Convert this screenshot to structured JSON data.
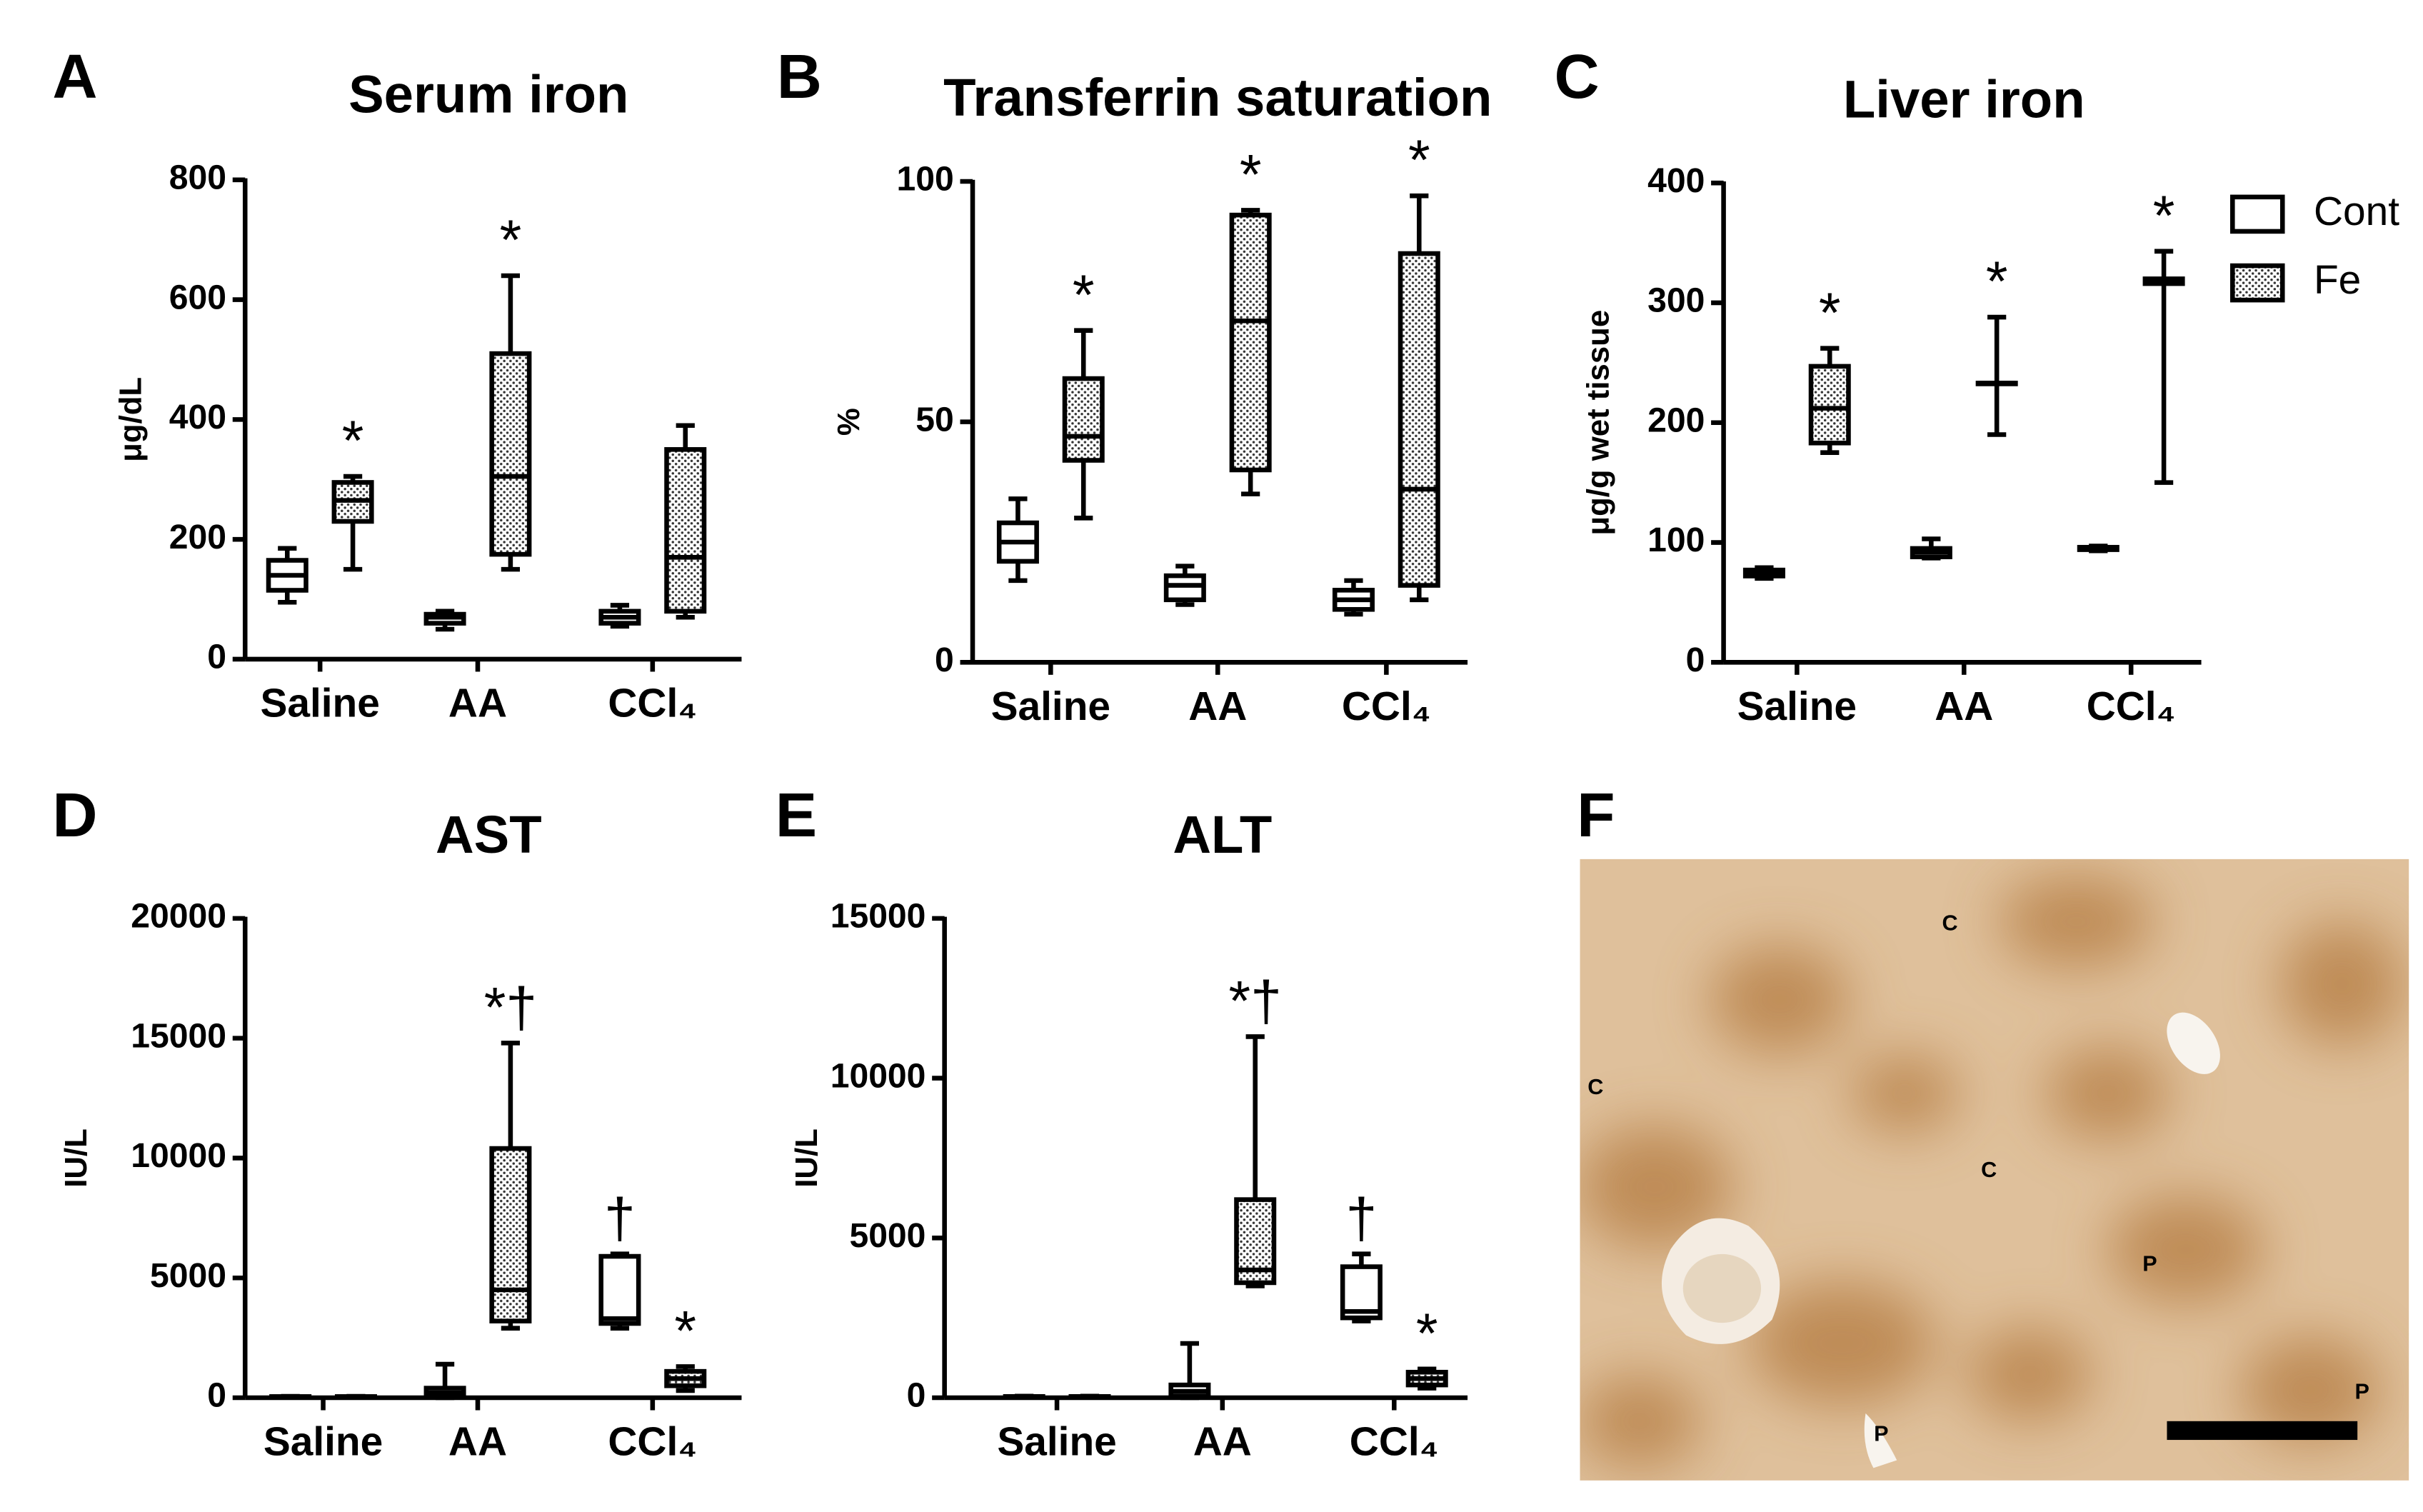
{
  "chart_data": [
    {
      "type": "box",
      "panel": "A",
      "title": "Serum iron",
      "y_label": "μg/dL",
      "ylim": [
        0,
        800
      ],
      "yticks": [
        0,
        200,
        400,
        600,
        800
      ],
      "categories": [
        "Saline",
        "AA",
        "CCl₄"
      ],
      "series": [
        {
          "name": "Cont",
          "color": "#000000",
          "fill": "white",
          "values": [
            {
              "min": 95,
              "q1": 115,
              "median": 140,
              "q3": 165,
              "max": 185
            },
            {
              "min": 50,
              "q1": 60,
              "median": 70,
              "q3": 75,
              "max": 80
            },
            {
              "min": 55,
              "q1": 60,
              "median": 70,
              "q3": 80,
              "max": 90
            }
          ],
          "annotations": [
            null,
            null,
            null
          ]
        },
        {
          "name": "Fe",
          "color": "#000000",
          "fill": "dots",
          "values": [
            {
              "min": 150,
              "q1": 230,
              "median": 265,
              "q3": 295,
              "max": 305
            },
            {
              "min": 150,
              "q1": 175,
              "median": 305,
              "q3": 510,
              "max": 640
            },
            {
              "min": 70,
              "q1": 80,
              "median": 170,
              "q3": 350,
              "max": 390
            }
          ],
          "annotations": [
            "*",
            "*",
            null
          ]
        }
      ]
    },
    {
      "type": "box",
      "panel": "B",
      "title": "Transferrin saturation",
      "y_label": "%",
      "ylim": [
        0,
        100
      ],
      "yticks": [
        0,
        50,
        100
      ],
      "categories": [
        "Saline",
        "AA",
        "CCl₄"
      ],
      "series": [
        {
          "name": "Cont",
          "color": "#000000",
          "fill": "white",
          "values": [
            {
              "min": 17,
              "q1": 21,
              "median": 25,
              "q3": 29,
              "max": 34
            },
            {
              "min": 12,
              "q1": 13,
              "median": 16,
              "q3": 18,
              "max": 20
            },
            {
              "min": 10,
              "q1": 11,
              "median": 13,
              "q3": 15,
              "max": 17
            }
          ],
          "annotations": [
            null,
            null,
            null
          ]
        },
        {
          "name": "Fe",
          "color": "#000000",
          "fill": "dots",
          "values": [
            {
              "min": 30,
              "q1": 42,
              "median": 47,
              "q3": 59,
              "max": 69
            },
            {
              "min": 35,
              "q1": 40,
              "median": 71,
              "q3": 93,
              "max": 94
            },
            {
              "min": 13,
              "q1": 16,
              "median": 36,
              "q3": 85,
              "max": 97
            }
          ],
          "annotations": [
            "*",
            "*",
            "*"
          ]
        }
      ]
    },
    {
      "type": "box",
      "panel": "C",
      "title": "Liver iron",
      "y_label": "μg/g wet tissue",
      "ylim": [
        0,
        400
      ],
      "yticks": [
        0,
        100,
        200,
        300,
        400
      ],
      "categories": [
        "Saline",
        "AA",
        "CCl₄"
      ],
      "legend": "right",
      "series": [
        {
          "name": "Cont",
          "color": "#000000",
          "fill": "white",
          "values": [
            {
              "min": 70,
              "q1": 72,
              "median": 75,
              "q3": 77,
              "max": 79
            },
            {
              "min": 87,
              "q1": 88,
              "median": 92,
              "q3": 95,
              "max": 103
            },
            {
              "min": 93,
              "q1": 94,
              "median": 95,
              "q3": 96,
              "max": 97
            }
          ],
          "annotations": [
            null,
            null,
            null
          ]
        },
        {
          "name": "Fe",
          "color": "#000000",
          "fill": "dots",
          "values": [
            {
              "min": 175,
              "q1": 183,
              "median": 212,
              "q3": 247,
              "max": 262
            },
            {
              "min": 190,
              "q1": 233,
              "median": 233,
              "q3": 233,
              "max": 288
            },
            {
              "min": 150,
              "q1": 316,
              "median": 318,
              "q3": 320,
              "max": 343
            }
          ],
          "annotations": [
            "*",
            "*",
            "*"
          ]
        }
      ]
    },
    {
      "type": "box",
      "panel": "D",
      "title": "AST",
      "y_label": "IU/L",
      "ylim": [
        0,
        20000
      ],
      "yticks": [
        0,
        5000,
        10000,
        15000,
        20000
      ],
      "categories": [
        "Saline",
        "AA",
        "CCl₄"
      ],
      "series": [
        {
          "name": "Cont",
          "color": "#000000",
          "fill": "white",
          "values": [
            {
              "min": 20,
              "q1": 30,
              "median": 40,
              "q3": 50,
              "max": 60
            },
            {
              "min": 0,
              "q1": 50,
              "median": 200,
              "q3": 400,
              "max": 1400
            },
            {
              "min": 2900,
              "q1": 3100,
              "median": 3300,
              "q3": 5900,
              "max": 6000
            }
          ],
          "annotations": [
            null,
            null,
            "†"
          ]
        },
        {
          "name": "Fe",
          "color": "#000000",
          "fill": "dots",
          "values": [
            {
              "min": 20,
              "q1": 30,
              "median": 40,
              "q3": 50,
              "max": 60
            },
            {
              "min": 2900,
              "q1": 3200,
              "median": 4500,
              "q3": 10400,
              "max": 14800
            },
            {
              "min": 300,
              "q1": 500,
              "median": 800,
              "q3": 1100,
              "max": 1300
            }
          ],
          "annotations": [
            null,
            "*†",
            "*"
          ]
        }
      ]
    },
    {
      "type": "box",
      "panel": "E",
      "title": "ALT",
      "y_label": "IU/L",
      "ylim": [
        0,
        15000
      ],
      "yticks": [
        0,
        5000,
        10000,
        15000
      ],
      "categories": [
        "Saline",
        "AA",
        "CCl₄"
      ],
      "series": [
        {
          "name": "Cont",
          "color": "#000000",
          "fill": "white",
          "values": [
            {
              "min": 10,
              "q1": 20,
              "median": 30,
              "q3": 40,
              "max": 50
            },
            {
              "min": 0,
              "q1": 50,
              "median": 200,
              "q3": 400,
              "max": 1700
            },
            {
              "min": 2400,
              "q1": 2500,
              "median": 2700,
              "q3": 4100,
              "max": 4500
            }
          ],
          "annotations": [
            null,
            null,
            "†"
          ]
        },
        {
          "name": "Fe",
          "color": "#000000",
          "fill": "dots",
          "values": [
            {
              "min": 10,
              "q1": 20,
              "median": 30,
              "q3": 40,
              "max": 50
            },
            {
              "min": 3500,
              "q1": 3600,
              "median": 4000,
              "q3": 6200,
              "max": 11300
            },
            {
              "min": 300,
              "q1": 400,
              "median": 600,
              "q3": 800,
              "max": 900
            }
          ],
          "annotations": [
            null,
            "*†",
            "*"
          ]
        }
      ]
    }
  ],
  "panel_f": {
    "panel": "F",
    "labels": [
      "C",
      "C",
      "C",
      "P",
      "P",
      "P"
    ]
  }
}
